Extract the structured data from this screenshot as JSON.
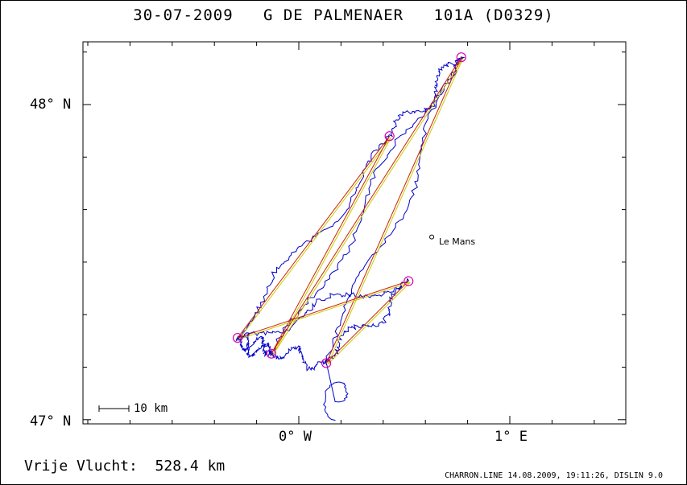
{
  "header": {
    "date": "30-07-2009",
    "pilot": "G DE PALMENAER",
    "flight_id": "101A (D0329)"
  },
  "axes": {
    "lat_labels": [
      "48° N",
      "47° N"
    ],
    "lon_labels": [
      "0° W",
      "1° E"
    ]
  },
  "places": [
    {
      "name": "Le Mans",
      "label": "Le Mans",
      "lon": 0.63,
      "lat": 47.58
    }
  ],
  "scale_bar": {
    "label": "10 km"
  },
  "turnpoints": [
    {
      "lon": 0.77,
      "lat": 48.15
    },
    {
      "lon": 0.43,
      "lat": 47.9
    },
    {
      "lon": -0.29,
      "lat": 47.26
    },
    {
      "lon": -0.13,
      "lat": 47.21
    },
    {
      "lon": 0.52,
      "lat": 47.44
    },
    {
      "lon": 0.13,
      "lat": 47.18
    }
  ],
  "task_legs": [
    [
      2,
      1
    ],
    [
      1,
      3
    ],
    [
      3,
      0
    ],
    [
      0,
      5
    ],
    [
      5,
      4
    ],
    [
      4,
      2
    ]
  ],
  "track_color": "#0000cc",
  "leg_colors": {
    "outer": "#cc2200",
    "inner": "#cccc00"
  },
  "turnpoint_color": "#dd00aa",
  "footer": {
    "free_flight": "Vrije Vlucht:  528.4 km",
    "software": "CHARRON.LINE 14.08.2009, 19:11:26, DISLIN 9.0"
  }
}
